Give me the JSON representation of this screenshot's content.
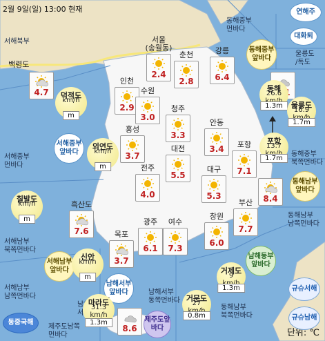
{
  "title": "2월 9일(일) 13:00 현재",
  "unit": "단위: ℃",
  "sea_labels": [
    {
      "key": "seo_buk",
      "lines": [
        "서해북부"
      ]
    },
    {
      "key": "donghae_jung",
      "lines": [
        "동해중부",
        "먼바다"
      ]
    },
    {
      "key": "seo_jung",
      "lines": [
        "서해중부",
        "먼바다"
      ]
    },
    {
      "key": "seo_nam_buk",
      "lines": [
        "서해남부",
        "북쪽먼바다"
      ]
    },
    {
      "key": "seo_nam_nam",
      "lines": [
        "서해남부",
        "남쪽먼바다"
      ]
    },
    {
      "key": "nam_seo_nam",
      "lines": [
        "남해서부",
        "서쪽먼바다"
      ]
    },
    {
      "key": "nam_seo_dong",
      "lines": [
        "남해서부",
        "동쪽먼바다"
      ]
    },
    {
      "key": "jeju_nam",
      "lines": [
        "제주도남쪽",
        "먼바다"
      ]
    },
    {
      "key": "ulleung_label",
      "lines": [
        "울릉도",
        "/독도"
      ]
    },
    {
      "key": "dong_jung_buk",
      "lines": [
        "동해중부",
        "북쪽먼바다"
      ]
    },
    {
      "key": "dong_nam_nam",
      "lines": [
        "동해남부",
        "남쪽먼바다"
      ]
    },
    {
      "key": "dong_nam_buk",
      "lines": [
        "동해남부",
        "북쪽먼바다"
      ]
    }
  ],
  "zones": [
    {
      "key": "yeonhae",
      "label": "연해주"
    },
    {
      "key": "daehwa",
      "label": "대화퇴"
    },
    {
      "key": "donghae_jung_ap",
      "label": "동해중부앞바다"
    },
    {
      "key": "seo_jung_ap",
      "label": "서해중부앞바다"
    },
    {
      "key": "seo_nam_ap",
      "label": "서해남부앞바다"
    },
    {
      "key": "nam_seo_ap",
      "label": "남해서부앞바다"
    },
    {
      "key": "nam_dong_ap",
      "label": "남해동부앞바다"
    },
    {
      "key": "dong_nam_ap",
      "label": "동해남부앞바다"
    },
    {
      "key": "jeju_ap",
      "label": "제주도앞바다"
    },
    {
      "key": "east_china",
      "label": "동중국해"
    },
    {
      "key": "kyushu_w",
      "label": "규슈서해"
    },
    {
      "key": "kyushu_s",
      "label": "규슈남해"
    }
  ],
  "cities": [
    {
      "key": "baengnyeong",
      "name": "백령도",
      "temp": "4.7",
      "weather": "partly-cloudy"
    },
    {
      "key": "seoul",
      "name": "서울\n(송월동)",
      "temp": "2.4",
      "weather": "sunny"
    },
    {
      "key": "chuncheon",
      "name": "춘천",
      "temp": "2.8",
      "weather": "sunny"
    },
    {
      "key": "gangneung",
      "name": "강릉",
      "temp": "6.4",
      "weather": "sunny"
    },
    {
      "key": "ulleung",
      "name": "울릉도",
      "temp": "2.1",
      "weather": "cloudy"
    },
    {
      "key": "incheon",
      "name": "인천",
      "temp": "2.9",
      "weather": "sunny"
    },
    {
      "key": "suwon",
      "name": "수원",
      "temp": "3.0",
      "weather": "sunny"
    },
    {
      "key": "cheongju",
      "name": "청주",
      "temp": "3.3",
      "weather": "sunny"
    },
    {
      "key": "andong",
      "name": "안동",
      "temp": "3.4",
      "weather": "sunny"
    },
    {
      "key": "hongseong",
      "name": "홍성",
      "temp": "3.7",
      "weather": "sunny"
    },
    {
      "key": "daejeon",
      "name": "대전",
      "temp": "5.5",
      "weather": "sunny"
    },
    {
      "key": "pohang",
      "name": "포항",
      "temp": "7.1",
      "weather": "sunny"
    },
    {
      "key": "jeonju",
      "name": "전주",
      "temp": "4.0",
      "weather": "sunny"
    },
    {
      "key": "daegu",
      "name": "대구",
      "temp": "5.3",
      "weather": "sunny"
    },
    {
      "key": "ulsan",
      "name": "울산",
      "temp": "8.4",
      "weather": "partly-cloudy"
    },
    {
      "key": "heuksando",
      "name": "흑산도",
      "temp": "7.6",
      "weather": "partly-cloudy"
    },
    {
      "key": "gwangju",
      "name": "광주",
      "temp": "6.1",
      "weather": "sunny"
    },
    {
      "key": "yeosu",
      "name": "여수",
      "temp": "7.3",
      "weather": "sunny"
    },
    {
      "key": "changwon",
      "name": "창원",
      "temp": "6.0",
      "weather": "sunny"
    },
    {
      "key": "busan",
      "name": "부산",
      "temp": "7.7",
      "weather": "sunny"
    },
    {
      "key": "mokpo",
      "name": "목포",
      "temp": "3.7",
      "weather": "partly-cloudy"
    },
    {
      "key": "jeju",
      "name": "제주",
      "temp": "8.6",
      "weather": "cloudy"
    }
  ],
  "buoys": [
    {
      "key": "deokjeokdo",
      "name": "덕적도",
      "wind": "km/h",
      "wave": "m"
    },
    {
      "key": "oeyeondo",
      "name": "외연도",
      "wind": "km/h",
      "wave": "m"
    },
    {
      "key": "chilbaldo",
      "name": "칠발도",
      "wind": "km/h",
      "wave": "m"
    },
    {
      "key": "sinan",
      "name": "신안",
      "wind": "km/h",
      "wave": "m"
    },
    {
      "key": "marado",
      "name": "마라도",
      "wind": "31.3\nkm/h",
      "wave": "1.3m"
    },
    {
      "key": "geomundo",
      "name": "거문도",
      "wind": "27\nkm/h",
      "wave": "0.8m"
    },
    {
      "key": "geojedo",
      "name": "거제도",
      "wind": "9\nkm/h",
      "wave": "1.3m"
    },
    {
      "key": "donghae",
      "name": "동해",
      "wind": "26.6\nkm/h",
      "wave": "1.3m"
    },
    {
      "key": "pohang_b",
      "name": "포항",
      "wind": "13.7\nkm/h",
      "wave": "1.7m"
    },
    {
      "key": "ulleungdo_b",
      "name": "울릉도",
      "wind": "16.9\nkm/h",
      "wave": "1.7m"
    }
  ],
  "colors": {
    "sea": "#7fb1dc",
    "land": "#f7f7f7",
    "north": "#ede3c5",
    "temp": "#c02020",
    "sun": "#f3b400"
  }
}
